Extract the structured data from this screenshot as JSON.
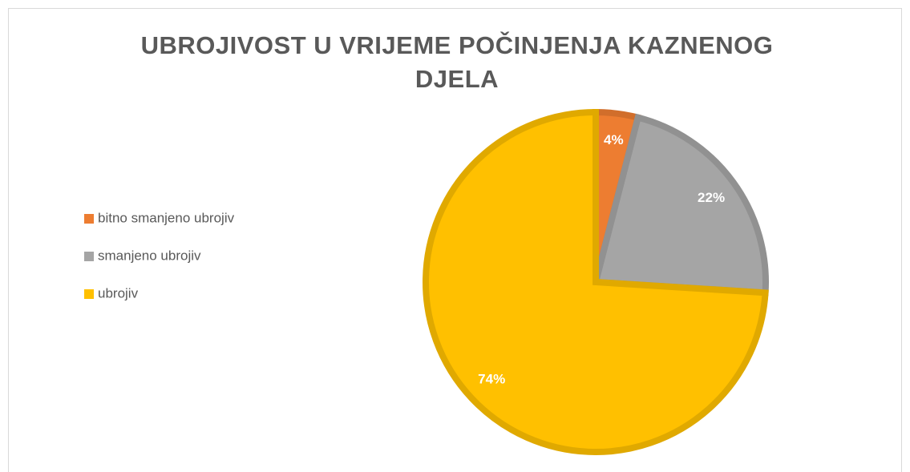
{
  "chart_data": {
    "type": "pie",
    "title": "UBROJIVOST U VRIJEME POČINJENJA KAZNENOG DJELA",
    "categories": [
      "bitno smanjeno ubrojiv",
      "smanjeno ubrojiv",
      "ubrojiv"
    ],
    "values": [
      4,
      22,
      74
    ],
    "value_labels": [
      "4%",
      "22%",
      "74%"
    ],
    "colors": [
      "#ED7D31",
      "#A5A5A5",
      "#FFC000"
    ],
    "legend": "left"
  }
}
